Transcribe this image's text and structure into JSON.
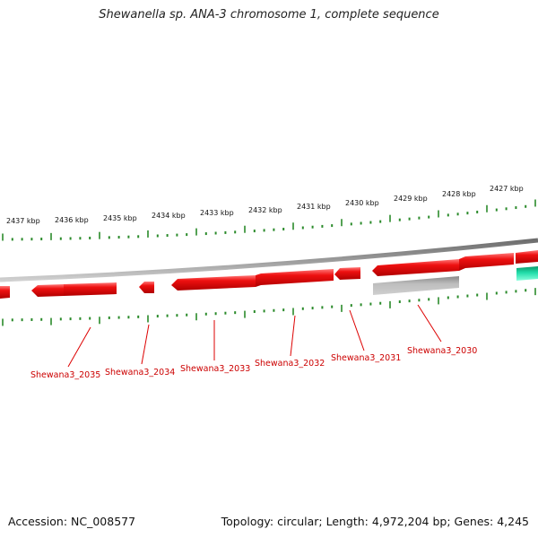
{
  "title": "Shewanella sp. ANA-3 chromosome 1, complete sequence",
  "footer": {
    "accession": "Accession: NC_008577",
    "summary": "Topology: circular; Length: 4,972,204 bp; Genes: 4,245"
  },
  "colors": {
    "gene_fill": "#ee0000",
    "gene_highlight": "#ff6a6a",
    "gene_shadow": "#b20000",
    "grey_feature": "#aaaaaa",
    "teal_feature": "#11dd99",
    "tick_green": "#2a8a2a",
    "backbone": "#8c8c8c",
    "label_red": "#cc0000"
  },
  "kbp_labels": [
    "2427 kbp",
    "2428 kbp",
    "2429 kbp",
    "2430 kbp",
    "2431 kbp",
    "2432 kbp",
    "2433 kbp",
    "2434 kbp",
    "2435 kbp",
    "2436 kbp",
    "2437 kbp"
  ],
  "gene_labels": [
    "Shewana3_2030",
    "Shewana3_2031",
    "Shewana3_2032",
    "Shewana3_2033",
    "Shewana3_2034",
    "Shewana3_2035"
  ]
}
